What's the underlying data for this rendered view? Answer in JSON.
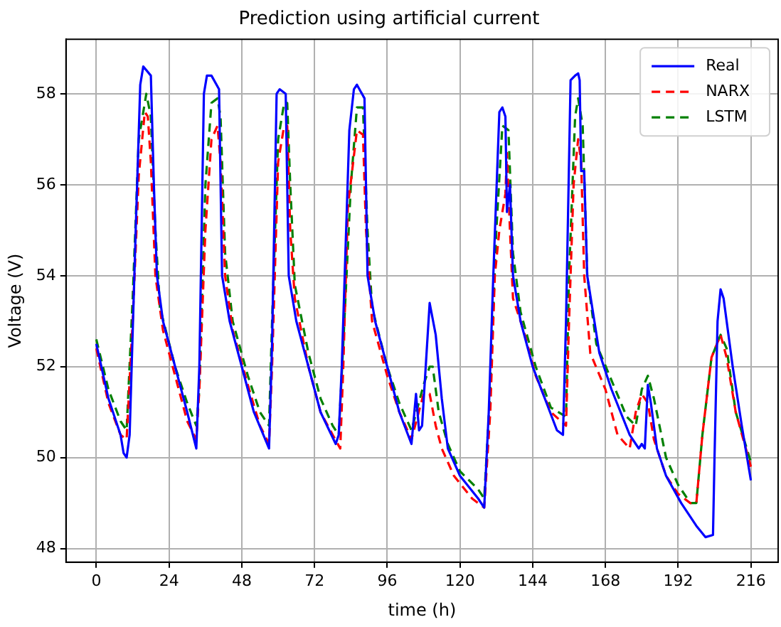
{
  "chart_data": {
    "type": "line",
    "title": "Prediction using artificial current",
    "xlabel": "time (h)",
    "ylabel": "Voltage (V)",
    "xlim": [
      -10,
      225
    ],
    "ylim": [
      47.7,
      59.2
    ],
    "xticks": [
      0,
      24,
      48,
      72,
      96,
      120,
      144,
      168,
      192,
      216
    ],
    "yticks": [
      48,
      50,
      52,
      54,
      56,
      58
    ],
    "grid": true,
    "legend": "top right",
    "marker": "none",
    "series": [
      {
        "name": "Real",
        "color": "#0000ff",
        "line_style": "solid",
        "x": [
          0,
          4,
          8,
          9,
          10,
          11,
          13,
          14.5,
          15.5,
          18,
          19,
          20,
          22,
          26,
          30,
          33,
          34,
          35.5,
          36.5,
          38,
          40.5,
          41.5,
          44,
          48,
          52,
          57,
          58,
          59.5,
          60.5,
          62.5,
          63.5,
          66,
          70,
          74,
          79,
          80,
          81,
          83.5,
          85,
          86,
          88.5,
          89.5,
          92,
          96,
          100,
          104,
          105.5,
          106.5,
          107.5,
          110,
          112,
          114,
          116,
          120,
          126,
          128,
          129.5,
          131,
          133,
          134,
          135,
          135.5,
          136.5,
          137.5,
          140,
          144,
          148,
          152,
          154,
          155,
          156.5,
          158,
          159,
          159.5,
          160,
          161,
          162,
          166,
          170,
          176,
          178,
          179,
          180,
          181,
          182,
          183,
          185,
          188,
          193,
          198,
          201,
          203.5,
          204,
          205,
          206,
          207,
          210,
          213,
          216
        ],
        "values": [
          52.5,
          51.3,
          50.5,
          50.1,
          50.0,
          50.5,
          55,
          58.2,
          58.6,
          58.4,
          56,
          54,
          53.0,
          52,
          51,
          50.2,
          52,
          58,
          58.4,
          58.4,
          58.1,
          54,
          53,
          52,
          51,
          50.2,
          52.5,
          58,
          58.1,
          58.0,
          54,
          53,
          52,
          51,
          50.3,
          50.5,
          52,
          57.2,
          58.1,
          58.2,
          57.9,
          54,
          53,
          52,
          51,
          50.3,
          51.4,
          50.6,
          50.7,
          53.4,
          52.7,
          51.3,
          50.2,
          49.6,
          49.1,
          48.9,
          51,
          54,
          57.6,
          57.7,
          57.5,
          55.4,
          56,
          54,
          53,
          52,
          51.3,
          50.6,
          50.5,
          53,
          58.3,
          58.4,
          58.45,
          58.3,
          56.3,
          56.3,
          54,
          52.3,
          51.5,
          50.5,
          50.3,
          50.2,
          50.3,
          50.2,
          51.6,
          51.2,
          50.2,
          49.6,
          49,
          48.5,
          48.25,
          48.3,
          50,
          53,
          53.7,
          53.5,
          52,
          50.7,
          49.5
        ]
      },
      {
        "name": "NARX",
        "color": "#ff0000",
        "line_style": "dashed",
        "x": [
          0,
          4,
          8,
          10,
          12,
          14,
          16,
          17,
          18,
          19.5,
          22,
          26,
          30,
          33,
          34,
          36,
          38,
          40,
          41,
          42.5,
          45,
          50,
          54,
          57,
          58,
          60,
          62,
          63,
          64,
          65.5,
          70,
          74,
          78,
          80.5,
          81.5,
          83,
          86,
          88,
          89,
          91,
          96,
          100,
          104,
          108,
          110,
          112,
          114,
          118,
          124,
          128,
          130,
          131.5,
          133,
          135,
          135.5,
          136.5,
          137.5,
          141,
          145,
          150,
          155,
          156,
          157.5,
          159,
          160,
          161,
          163,
          168,
          172,
          176,
          178,
          180,
          182,
          184,
          188,
          192,
          196,
          198,
          200,
          203,
          206,
          208,
          211,
          216
        ],
        "values": [
          52.4,
          51.2,
          50.5,
          50.4,
          53,
          56.2,
          57.6,
          57.5,
          56.5,
          54,
          52.8,
          51.8,
          50.8,
          50.4,
          51.5,
          55,
          57.0,
          57.3,
          56.5,
          54,
          52.8,
          51.6,
          50.7,
          50.3,
          52,
          56.5,
          57.3,
          57.3,
          55,
          53.5,
          52,
          51,
          50.5,
          50.2,
          52,
          55.5,
          57.2,
          57.1,
          55,
          53,
          51.8,
          51,
          50.4,
          51.4,
          51.4,
          50.7,
          50.2,
          49.6,
          49.1,
          48.9,
          51,
          54,
          55,
          55.8,
          56.7,
          55,
          53.5,
          52.8,
          51.8,
          51,
          50.7,
          53,
          56,
          57,
          56.5,
          54,
          52.3,
          51.5,
          50.5,
          50.2,
          51,
          51.4,
          51.2,
          50.4,
          49.6,
          49.2,
          49,
          49,
          50.5,
          52.2,
          52.7,
          52.2,
          51,
          49.8
        ]
      },
      {
        "name": "LSTM",
        "color": "#008000",
        "line_style": "dashed",
        "x": [
          0,
          4,
          8,
          10,
          12,
          14,
          16.5,
          18,
          19.5,
          21,
          26,
          30,
          33,
          34,
          36,
          38,
          40,
          41,
          42.5,
          45,
          50,
          54,
          57,
          58,
          60,
          62,
          63,
          64,
          65.5,
          70,
          74,
          78,
          80,
          81.5,
          84,
          86,
          88,
          89.5,
          91,
          96,
          100,
          104,
          108,
          110,
          111,
          113,
          116,
          120,
          126,
          128,
          130,
          132,
          134,
          136,
          137.5,
          140,
          145,
          150,
          155,
          156,
          158,
          159,
          160.5,
          162,
          165,
          170,
          175,
          178,
          180,
          182,
          184,
          188,
          192,
          196,
          198,
          200,
          203,
          206,
          208,
          211,
          216
        ],
        "values": [
          52.6,
          51.5,
          50.8,
          50.6,
          53.5,
          57,
          58.0,
          57.5,
          55,
          53.3,
          52,
          51.2,
          50.7,
          51.5,
          56,
          57.8,
          57.9,
          57.5,
          54.5,
          53,
          51.8,
          51,
          50.7,
          53,
          57,
          57.8,
          57.8,
          56,
          53.8,
          52.3,
          51.3,
          50.7,
          50.5,
          52.5,
          56,
          57.7,
          57.7,
          55,
          53.3,
          52,
          51.2,
          50.6,
          51.6,
          52,
          52,
          51,
          50.3,
          49.7,
          49.3,
          49.1,
          51.5,
          55,
          57.3,
          57.2,
          54.5,
          53.2,
          52,
          51.1,
          50.9,
          54,
          57.5,
          57.9,
          57.3,
          54,
          52.5,
          51.7,
          50.9,
          50.7,
          51.5,
          51.8,
          51.3,
          50,
          49.4,
          49,
          49,
          50.5,
          52.2,
          52.7,
          52.4,
          51,
          49.9
        ]
      }
    ]
  }
}
